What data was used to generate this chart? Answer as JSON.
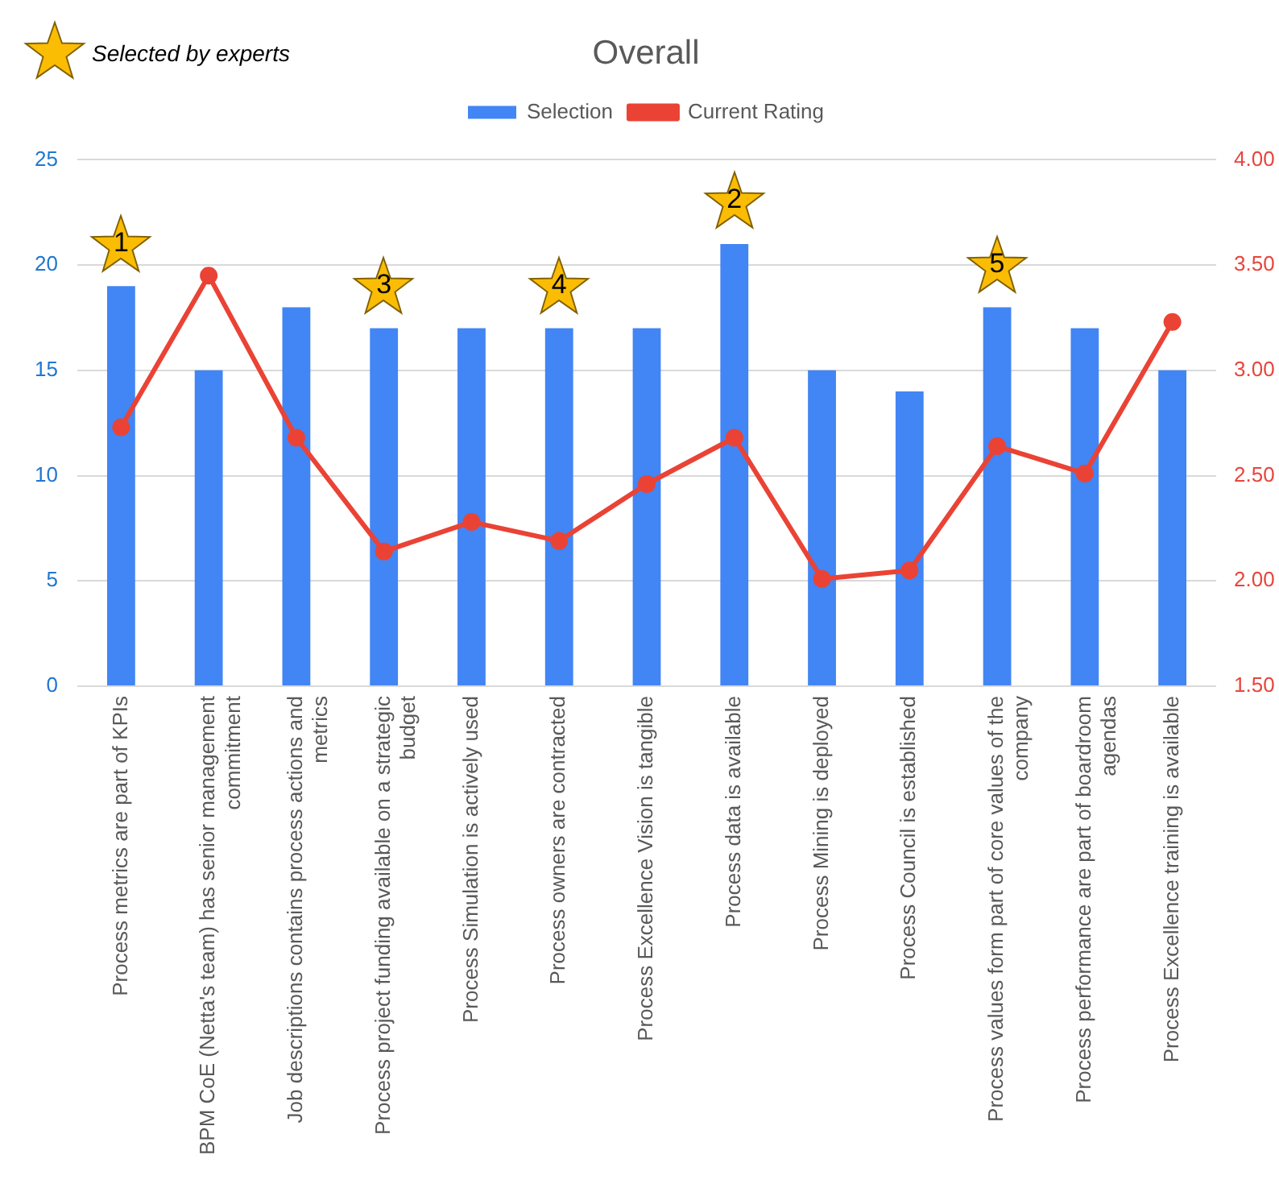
{
  "chart_data": {
    "type": "bar",
    "title": "Overall",
    "categories": [
      "Process metrics are part of KPIs",
      "BPM CoE (Netta's team) has senior management commitment",
      "Job descriptions contains process actions and metrics",
      "Process project funding available on a strategic budget",
      "Process Simulation is actively used",
      "Process owners are contracted",
      "Process Excellence Vision is tangible",
      "Process data is available",
      "Process Mining is deployed",
      "Process Council is established",
      "Process values form part of core values of the company",
      "Process performance are part of boardroom agendas",
      "Process Excellence training is available"
    ],
    "series": [
      {
        "name": "Selection",
        "color": "#4285f4",
        "values": [
          19,
          15,
          18,
          17,
          17,
          17,
          17,
          21,
          15,
          14,
          18,
          17,
          15
        ]
      },
      {
        "name": "Current Rating",
        "type": "line",
        "axis": "y2",
        "color": "#ea4335",
        "values": [
          2.73,
          3.45,
          2.68,
          2.14,
          2.28,
          2.19,
          2.46,
          2.68,
          2.01,
          2.05,
          2.64,
          2.51,
          3.23
        ]
      }
    ],
    "ylim": [
      0,
      25
    ],
    "yticks": [
      0,
      5,
      10,
      15,
      20,
      25
    ],
    "y2lim": [
      1.5,
      4
    ],
    "y2ticks": [
      {
        "value": 1.5,
        "label": "1.50"
      },
      {
        "value": 2,
        "label": "2.00"
      },
      {
        "value": 2.5,
        "label": "2.50"
      },
      {
        "value": 3,
        "label": "3.00"
      },
      {
        "value": 3.5,
        "label": "3.50"
      },
      {
        "value": 4,
        "label": "4.00"
      }
    ],
    "grid": "y",
    "legend": "top",
    "marker": "circle",
    "line_style": "solid",
    "annotations": [
      "Selected by experts",
      {
        "text": "1",
        "x": "Process metrics are part of KPIs",
        "y": 19
      },
      {
        "text": "2",
        "x": "Process data is available",
        "y": 21
      },
      {
        "text": "3",
        "x": "Process project funding available on a strategic budget",
        "y": 17
      },
      {
        "text": "4",
        "x": "Process owners are contracted",
        "y": 17
      },
      {
        "text": "5",
        "x": "Process values form part of core values of the company",
        "y": 18
      }
    ]
  }
}
